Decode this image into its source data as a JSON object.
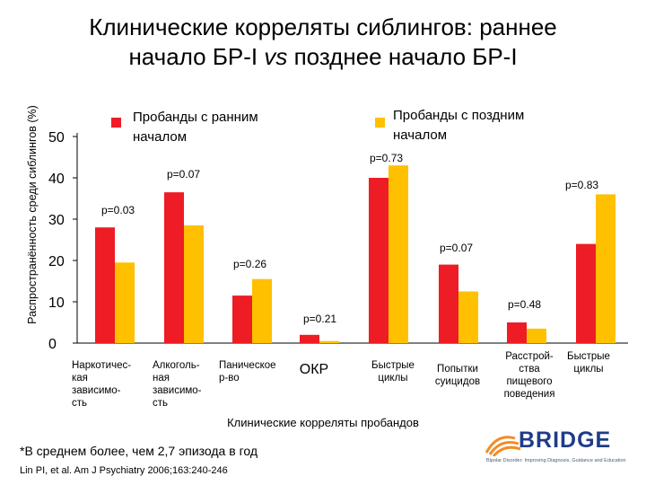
{
  "title": {
    "line1": "Клинические корреляты сиблингов: раннее",
    "line2_part1": "начало БР-I ",
    "line2_vs": "vs",
    "line2_part2": " позднее начало БР-I"
  },
  "colors": {
    "early": "#ee1c25",
    "late": "#ffc000",
    "axis": "#000000",
    "text": "#000000"
  },
  "chart_data": {
    "type": "bar",
    "title": "",
    "xlabel": "Клинические корреляты пробандов",
    "ylabel": "Распространённость среди сиблингов (%)",
    "ylim": [
      0,
      50
    ],
    "yticks": [
      0,
      10,
      20,
      30,
      40,
      50
    ],
    "categories": [
      [
        "Наркотичес-",
        "кая",
        "зависимо-",
        "сть"
      ],
      [
        "Алкоголь-",
        "ная",
        "зависимо-",
        "сть"
      ],
      [
        "Паническое",
        "р-во"
      ],
      [
        "ОКР"
      ],
      [
        "Быстрые",
        "циклы"
      ],
      [
        "Попытки",
        "суицидов"
      ],
      [
        "Расстрой-",
        "ства",
        "пищевого",
        "поведения"
      ],
      [
        "Быстрые",
        "циклы"
      ]
    ],
    "series": [
      {
        "name": "Пробанды с ранним началом",
        "values": [
          28,
          36.5,
          11.5,
          2,
          40,
          19,
          5,
          24
        ]
      },
      {
        "name": "Пробанды с поздним началом",
        "values": [
          19.5,
          28.5,
          15.5,
          0.5,
          43,
          12.5,
          3.5,
          36
        ]
      }
    ],
    "legend": [
      "Пробанды с ранним началом",
      "Пробанды с поздним началом"
    ],
    "legend_position": "top",
    "annotations": [
      "p=0.03",
      "p=0.07",
      "p=0.26",
      "p=0.21",
      "p=0.73",
      "p=0.07",
      "p=0.48",
      "p=0.83"
    ]
  },
  "footnote": "*В среднем более, чем 2,7 эпизода в год",
  "reference": "Lin PI, et al. Am J Psychiatry 2006;163:240-246",
  "logo": {
    "text": "BRIDGE",
    "tagline": "Bipolar Disorder: Improving Diagnosis, Guidance and Education",
    "icon": "bridge-arcs-icon"
  }
}
